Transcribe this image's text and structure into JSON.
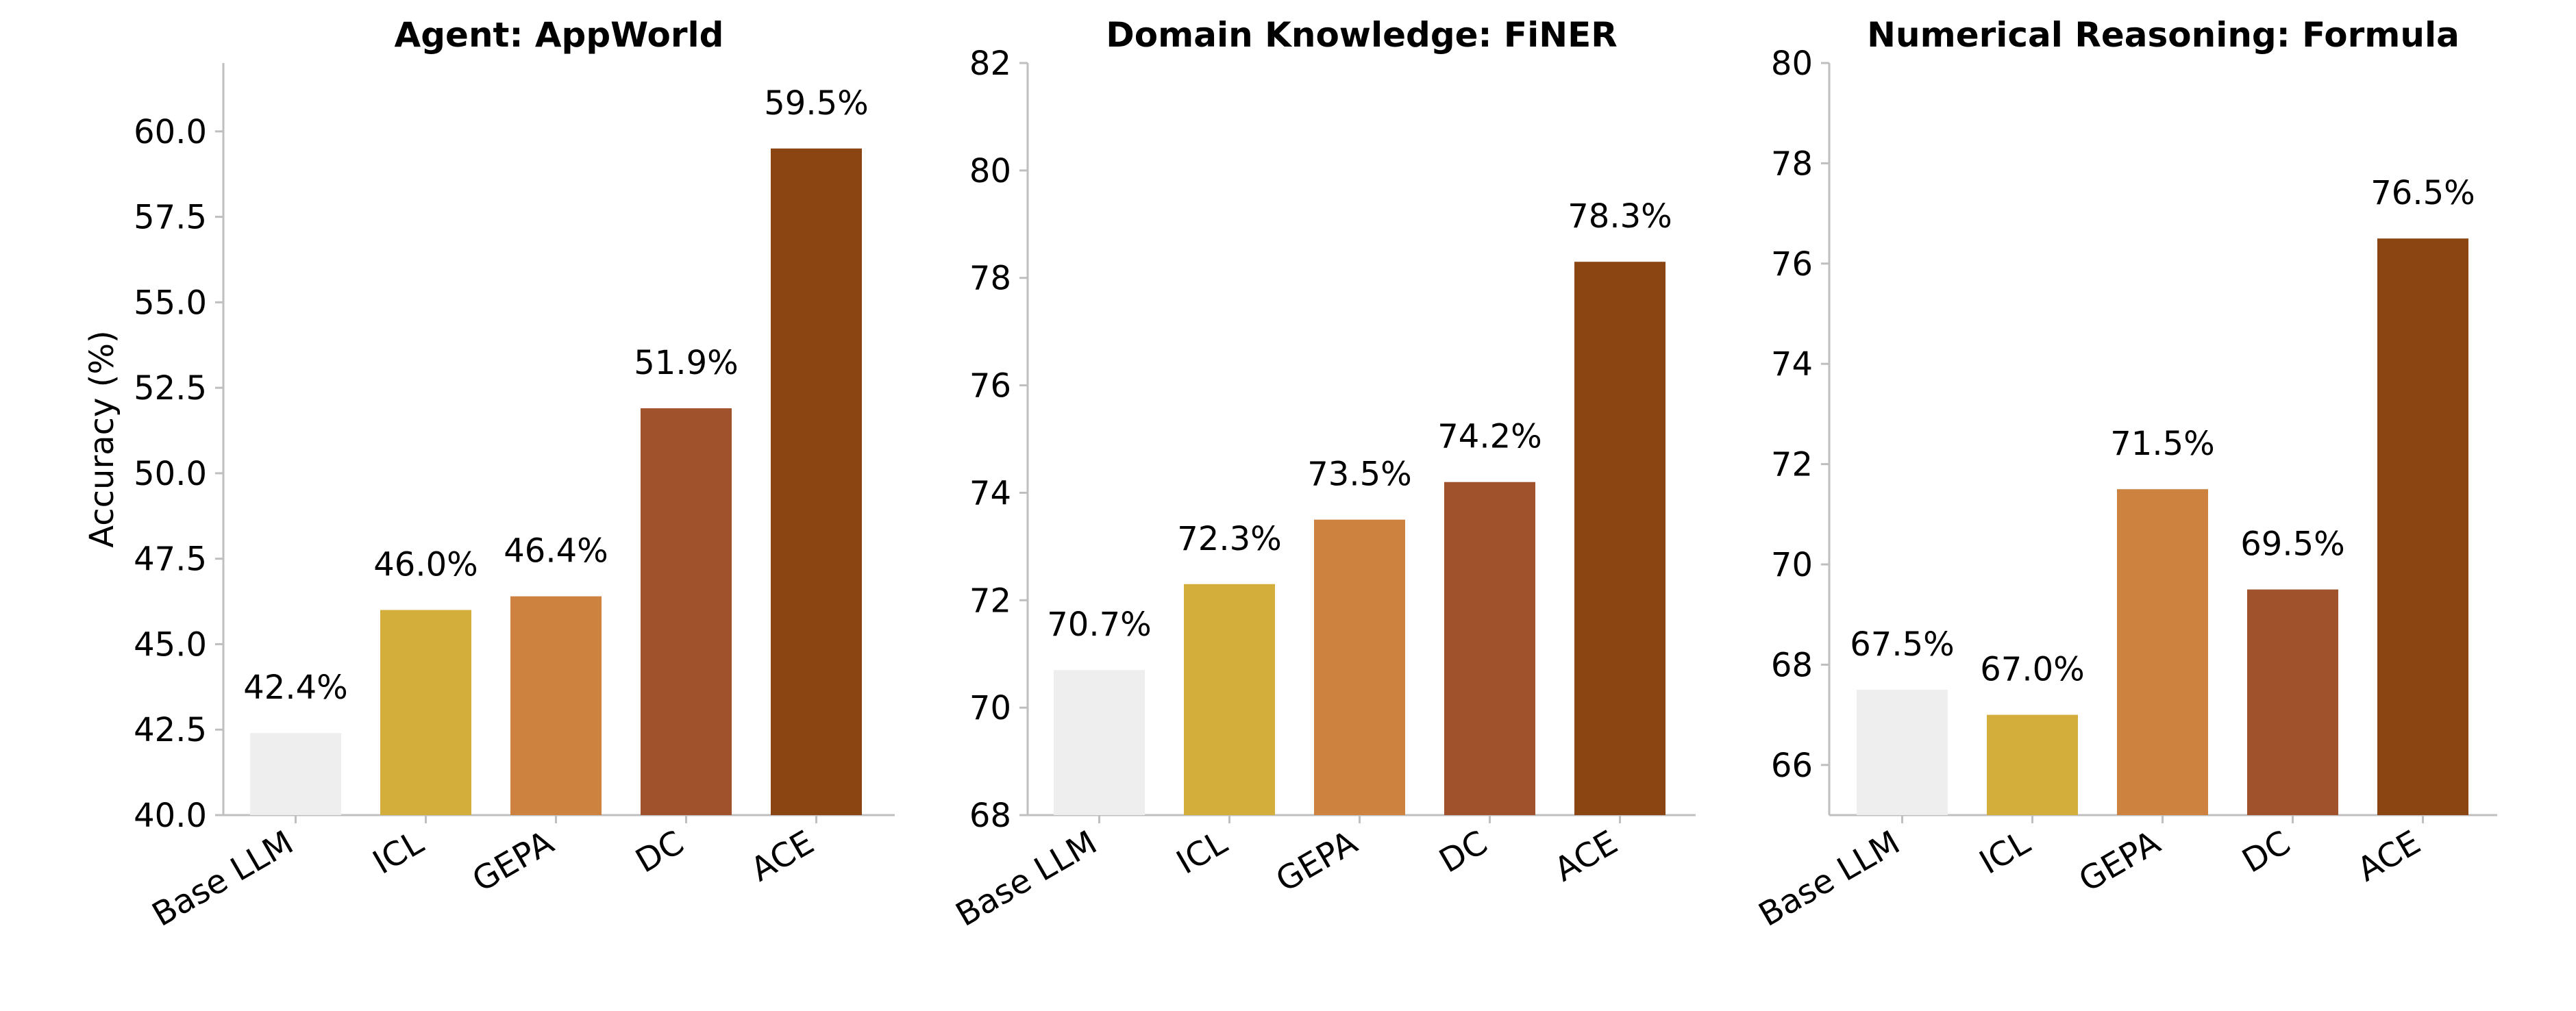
{
  "chart_data": [
    {
      "type": "bar",
      "title": "Agent: AppWorld",
      "ylabel": "Accuracy (%)",
      "xlabel": "",
      "categories": [
        "Base LLM",
        "ICL",
        "GEPA",
        "DC",
        "ACE"
      ],
      "values": [
        42.4,
        46.0,
        46.4,
        51.9,
        59.5
      ],
      "data_labels": [
        "42.4%",
        "46.0%",
        "46.4%",
        "51.9%",
        "59.5%"
      ],
      "ylim": [
        40,
        62
      ],
      "yticks": [
        40.0,
        42.5,
        45.0,
        47.5,
        50.0,
        52.5,
        55.0,
        57.5,
        60.0
      ],
      "ytick_labels": [
        "40.0",
        "42.5",
        "45.0",
        "47.5",
        "50.0",
        "52.5",
        "55.0",
        "57.5",
        "60.0"
      ],
      "colors": [
        "#eeeeee",
        "#d4ae3a",
        "#cd823f",
        "#a0522d",
        "#8b4513"
      ],
      "grid": false
    },
    {
      "type": "bar",
      "title": "Domain Knowledge: FiNER",
      "ylabel": "",
      "xlabel": "",
      "categories": [
        "Base LLM",
        "ICL",
        "GEPA",
        "DC",
        "ACE"
      ],
      "values": [
        70.7,
        72.3,
        73.5,
        74.2,
        78.3
      ],
      "data_labels": [
        "70.7%",
        "72.3%",
        "73.5%",
        "74.2%",
        "78.3%"
      ],
      "ylim": [
        68,
        82
      ],
      "yticks": [
        68,
        70,
        72,
        74,
        76,
        78,
        80,
        82
      ],
      "ytick_labels": [
        "68",
        "70",
        "72",
        "74",
        "76",
        "78",
        "80",
        "82"
      ],
      "colors": [
        "#eeeeee",
        "#d4ae3a",
        "#cd823f",
        "#a0522d",
        "#8b4513"
      ],
      "grid": false
    },
    {
      "type": "bar",
      "title": "Numerical Reasoning: Formula",
      "ylabel": "",
      "xlabel": "",
      "categories": [
        "Base LLM",
        "ICL",
        "GEPA",
        "DC",
        "ACE"
      ],
      "values": [
        67.5,
        67.0,
        71.5,
        69.5,
        76.5
      ],
      "data_labels": [
        "67.5%",
        "67.0%",
        "71.5%",
        "69.5%",
        "76.5%"
      ],
      "ylim": [
        65,
        80
      ],
      "yticks": [
        66,
        68,
        70,
        72,
        74,
        76,
        78,
        80
      ],
      "ytick_labels": [
        "66",
        "68",
        "70",
        "72",
        "74",
        "76",
        "78",
        "80"
      ],
      "colors": [
        "#eeeeee",
        "#d4ae3a",
        "#cd823f",
        "#a0522d",
        "#8b4513"
      ],
      "grid": false
    }
  ]
}
